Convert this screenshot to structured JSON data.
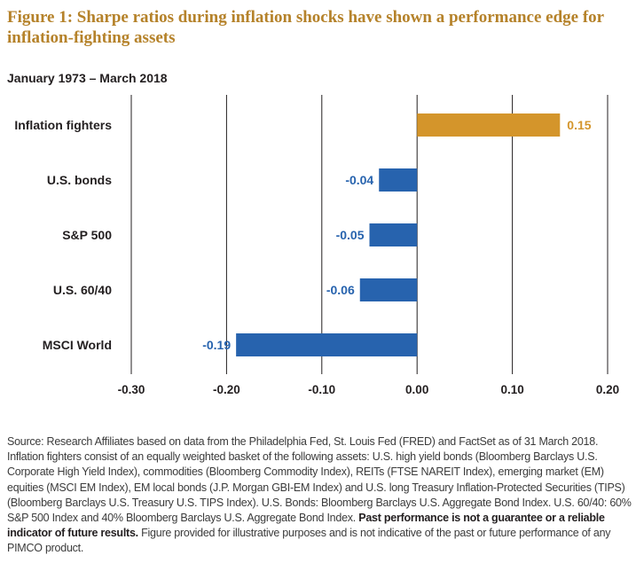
{
  "chart_data": {
    "type": "bar",
    "orientation": "horizontal",
    "title": "Figure 1: Sharpe ratios during inflation shocks have shown a performance edge for inflation-fighting assets",
    "subtitle": "January 1973 – March 2018",
    "categories": [
      "Inflation fighters",
      "U.S. bonds",
      "S&P 500",
      "U.S. 60/40",
      "MSCI World"
    ],
    "values": [
      0.15,
      -0.04,
      -0.05,
      -0.06,
      -0.19
    ],
    "value_labels": [
      "0.15",
      "-0.04",
      "-0.05",
      "-0.06",
      "-0.19"
    ],
    "bar_colors": [
      "#d4952b",
      "#2763ae",
      "#2763ae",
      "#2763ae",
      "#2763ae"
    ],
    "xlim": [
      -0.3,
      0.2
    ],
    "xticks": [
      -0.3,
      -0.2,
      -0.1,
      0.0,
      0.1,
      0.2
    ],
    "xtick_labels": [
      "-0.30",
      "-0.20",
      "-0.10",
      "0.00",
      "0.10",
      "0.20"
    ],
    "grid": "vertical",
    "legend": "none"
  },
  "source": {
    "text": "Source: Research Affiliates based on data from the Philadelphia Fed, St. Louis Fed (FRED) and FactSet as of 31 March 2018. Inflation fighters consist of an equally weighted basket of the following assets: U.S. high yield bonds (Bloomberg Barclays U.S. Corporate High Yield Index), commodities (Bloomberg Commodity Index), REITs (FTSE NAREIT Index), emerging market (EM) equities (MSCI EM Index), EM local bonds (J.P. Morgan GBI-EM Index) and U.S. long Treasury Inflation-Protected Securities (TIPS)  (Bloomberg Barclays U.S. Treasury U.S. TIPS Index). U.S. Bonds: Bloomberg Barclays U.S. Aggregate Bond Index. U.S. 60/40: 60% S&P 500 Index and 40% Bloomberg Barclays U.S. Aggregate Bond Index.",
    "bold_text": "Past performance is not a guarantee or a reliable indicator of future results.",
    "tail_text": "Figure provided for illustrative purposes and is not indicative of the past or future performance of any PIMCO product."
  }
}
